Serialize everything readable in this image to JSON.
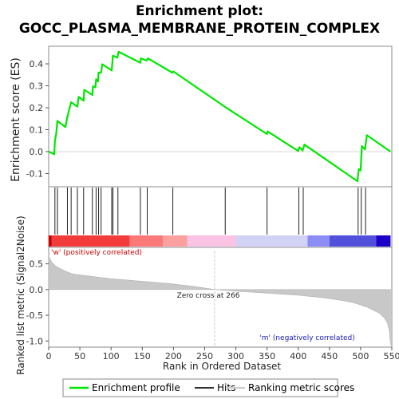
{
  "chart_data": {
    "type": "line",
    "title_line1": "Enrichment plot:",
    "title_line2": "GOCC_PLASMA_MEMBRANE_PROTEIN_COMPLEX",
    "es_panel": {
      "ylabel": "Enrichment score (ES)",
      "ylim": [
        -0.16,
        0.48
      ],
      "yticks": [
        "-0.1",
        "0.0",
        "0.1",
        "0.2",
        "0.3",
        "0.4"
      ],
      "ytick_values": [
        -0.1,
        0.0,
        0.1,
        0.2,
        0.3,
        0.4
      ],
      "curve": [
        [
          0,
          0.0
        ],
        [
          9,
          -0.012
        ],
        [
          10,
          0.05
        ],
        [
          12,
          0.08
        ],
        [
          14,
          0.14
        ],
        [
          27,
          0.112
        ],
        [
          30,
          0.16
        ],
        [
          31,
          0.17
        ],
        [
          36,
          0.225
        ],
        [
          46,
          0.205
        ],
        [
          48,
          0.25
        ],
        [
          56,
          0.232
        ],
        [
          57,
          0.282
        ],
        [
          70,
          0.258
        ],
        [
          71,
          0.298
        ],
        [
          75,
          0.293
        ],
        [
          76,
          0.33
        ],
        [
          79,
          0.32
        ],
        [
          80,
          0.36
        ],
        [
          84,
          0.36
        ],
        [
          86,
          0.398
        ],
        [
          101,
          0.37
        ],
        [
          103,
          0.437
        ],
        [
          110,
          0.428
        ],
        [
          112,
          0.455
        ],
        [
          147,
          0.405
        ],
        [
          148,
          0.425
        ],
        [
          157,
          0.415
        ],
        [
          159,
          0.425
        ],
        [
          198,
          0.36
        ],
        [
          200,
          0.365
        ],
        [
          282,
          0.205
        ],
        [
          283,
          0.203
        ],
        [
          350,
          0.08
        ],
        [
          351,
          0.092
        ],
        [
          400,
          0.003
        ],
        [
          402,
          0.02
        ],
        [
          407,
          0.005
        ],
        [
          410,
          0.032
        ],
        [
          495,
          -0.135
        ],
        [
          497,
          -0.08
        ],
        [
          500,
          -0.085
        ],
        [
          502,
          0.025
        ],
        [
          507,
          0.01
        ],
        [
          510,
          0.075
        ],
        [
          548,
          0.0
        ]
      ]
    },
    "hits_panel": {
      "hit_positions": [
        10,
        14,
        30,
        36,
        46,
        56,
        70,
        76,
        80,
        84,
        101,
        103,
        111,
        147,
        158,
        199,
        283,
        350,
        401,
        408,
        496,
        501,
        508
      ]
    },
    "metric_panel": {
      "ylabel": "Ranked list metric (Signal2Noise)",
      "xlabel": "Rank in Ordered Dataset",
      "ylim": [
        -1.12,
        0.82
      ],
      "yticks": [
        "0.5",
        "0.0",
        "-0.5",
        "-1.0"
      ],
      "ytick_values": [
        0.5,
        0.0,
        -0.5,
        -1.0
      ],
      "xticks": [
        "0",
        "50",
        "100",
        "150",
        "200",
        "250",
        "300",
        "350",
        "400",
        "450",
        "500",
        "550"
      ],
      "xtick_values": [
        0,
        50,
        100,
        150,
        200,
        250,
        300,
        350,
        400,
        450,
        500,
        550
      ],
      "xlim": [
        0,
        550
      ],
      "zero_cross_label": "Zero cross at 266",
      "zero_cross_rank": 266,
      "pos_label": "'w' (positively correlated)",
      "neg_label": "'m' (negatively correlated)",
      "metric_profile": [
        [
          0,
          0.66
        ],
        [
          2,
          0.6
        ],
        [
          5,
          0.53
        ],
        [
          10,
          0.47
        ],
        [
          15,
          0.43
        ],
        [
          20,
          0.4
        ],
        [
          30,
          0.34
        ],
        [
          40,
          0.3
        ],
        [
          60,
          0.27
        ],
        [
          80,
          0.24
        ],
        [
          100,
          0.21
        ],
        [
          130,
          0.18
        ],
        [
          160,
          0.15
        ],
        [
          190,
          0.12
        ],
        [
          220,
          0.08
        ],
        [
          245,
          0.04
        ],
        [
          266,
          0.0
        ],
        [
          300,
          -0.03
        ],
        [
          350,
          -0.07
        ],
        [
          400,
          -0.11
        ],
        [
          440,
          -0.16
        ],
        [
          470,
          -0.21
        ],
        [
          490,
          -0.26
        ],
        [
          510,
          -0.34
        ],
        [
          520,
          -0.4
        ],
        [
          530,
          -0.46
        ],
        [
          538,
          -0.55
        ],
        [
          543,
          -0.65
        ],
        [
          546,
          -0.8
        ],
        [
          548,
          -1.08
        ]
      ]
    },
    "color_bar": {
      "segments": [
        {
          "from": 0,
          "to": 5,
          "color": "#d20000"
        },
        {
          "from": 5,
          "to": 130,
          "color": "#f23c3c"
        },
        {
          "from": 130,
          "to": 183,
          "color": "#fa7878"
        },
        {
          "from": 183,
          "to": 222,
          "color": "#fb9f9f"
        },
        {
          "from": 222,
          "to": 300,
          "color": "#fac3e4"
        },
        {
          "from": 300,
          "to": 415,
          "color": "#d2d2f5"
        },
        {
          "from": 415,
          "to": 450,
          "color": "#8c8cf5"
        },
        {
          "from": 450,
          "to": 525,
          "color": "#5050dc"
        },
        {
          "from": 525,
          "to": 548,
          "color": "#1c00c8"
        }
      ]
    },
    "legend": [
      {
        "label": "Enrichment profile",
        "color": "#00e600"
      },
      {
        "label": "Hits",
        "color": "#333333"
      },
      {
        "label": "Ranking metric scores",
        "color": "#cccccc"
      }
    ],
    "colors": {
      "curve": "#00e600",
      "pos_text": "#cc0000",
      "neg_text": "#1a1ab4",
      "metric_fill": "#c8c8c8"
    }
  }
}
